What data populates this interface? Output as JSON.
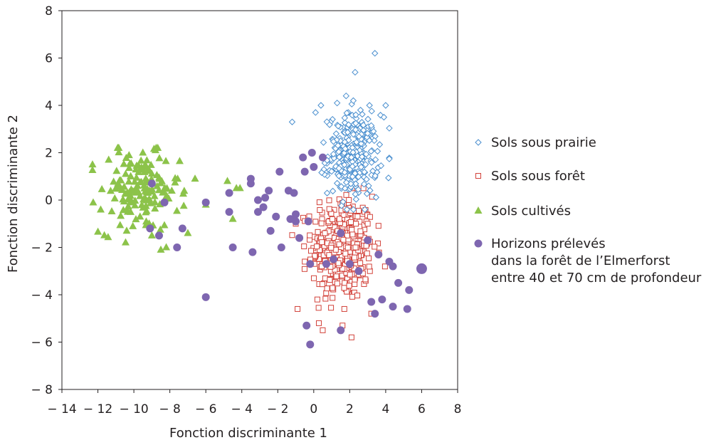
{
  "chart_data": {
    "type": "scatter",
    "title": "",
    "xlabel": "Fonction discriminante 1",
    "ylabel": "Fonction discriminante 2",
    "xlim": [
      -14,
      8
    ],
    "ylim": [
      -8,
      8
    ],
    "xticks": [
      -14,
      -12,
      -10,
      -8,
      -6,
      -4,
      -2,
      0,
      2,
      4,
      6,
      8
    ],
    "yticks": [
      -8,
      -6,
      -4,
      -2,
      0,
      2,
      4,
      6,
      8
    ],
    "xtick_labels": [
      "− 14",
      "− 12",
      "− 10",
      "− 8",
      "− 6",
      "− 4",
      "− 2",
      "0",
      "2",
      "4",
      "6",
      "8"
    ],
    "ytick_labels": [
      "− 8",
      "− 6",
      "− 4",
      "− 2",
      "0",
      "2",
      "4",
      "6",
      "8"
    ],
    "grid": false,
    "legend_position": "right",
    "legend": [
      {
        "lines": [
          "Sols sous prairie"
        ]
      },
      {
        "lines": [
          "Sols sous forêt"
        ]
      },
      {
        "lines": [
          "Sols cultivés"
        ]
      },
      {
        "lines": [
          "Horizons prélevés",
          "dans la forêt de l’Elmerforst",
          "entre 40 et 70 cm de profondeur"
        ]
      }
    ],
    "series": [
      {
        "name": "Sols sous prairie",
        "marker": "diamond-open",
        "color": "#4a8fcf",
        "cluster": {
          "n": 300,
          "cx": 2.2,
          "cy": 1.9,
          "sx": 0.7,
          "sy": 0.85,
          "xmin": -1.5,
          "xmax": 4.2,
          "ymin": -0.4,
          "ymax": 4.2
        },
        "points": [
          [
            3.4,
            6.2
          ],
          [
            2.3,
            5.4
          ],
          [
            1.8,
            4.4
          ],
          [
            2.2,
            4.2
          ],
          [
            3.1,
            4.0
          ],
          [
            0.4,
            4.0
          ],
          [
            4.0,
            4.0
          ],
          [
            0.1,
            3.7
          ],
          [
            3.9,
            3.5
          ],
          [
            -1.2,
            3.3
          ],
          [
            1.3,
            4.1
          ],
          [
            2.6,
            3.8
          ]
        ]
      },
      {
        "name": "Sols sous forêt",
        "marker": "square-open",
        "color": "#d2423a",
        "cluster": {
          "n": 360,
          "cx": 1.6,
          "cy": -2.0,
          "sx": 0.85,
          "sy": 1.1,
          "xmin": -1.2,
          "xmax": 4.2,
          "ymin": -5.2,
          "ymax": 0.5
        },
        "points": [
          [
            -0.9,
            -4.6
          ],
          [
            0.5,
            -5.5
          ],
          [
            1.6,
            -5.3
          ],
          [
            2.1,
            -5.8
          ],
          [
            3.2,
            -4.8
          ],
          [
            -0.5,
            -2.6
          ],
          [
            0.2,
            -4.2
          ],
          [
            1.7,
            -4.6
          ],
          [
            3.0,
            -1.0
          ],
          [
            -1.0,
            -1.0
          ]
        ]
      },
      {
        "name": "Sols cultivés",
        "marker": "triangle",
        "color": "#8cc34a",
        "cluster": {
          "n": 150,
          "cx": -9.7,
          "cy": 0.3,
          "sx": 1.1,
          "sy": 0.85,
          "xmin": -12.3,
          "xmax": -7.2,
          "ymin": -2.0,
          "ymax": 2.2
        },
        "points": [
          [
            -12.3,
            1.5
          ],
          [
            -10.9,
            2.2
          ],
          [
            -8.8,
            2.1
          ],
          [
            -9.5,
            2.0
          ],
          [
            -11.4,
            1.7
          ],
          [
            -8.5,
            -2.1
          ],
          [
            -7.0,
            -1.4
          ],
          [
            -6.6,
            0.9
          ],
          [
            -6.0,
            -0.2
          ],
          [
            -4.8,
            0.8
          ],
          [
            -4.5,
            -0.8
          ],
          [
            -4.3,
            0.5
          ],
          [
            -4.1,
            0.5
          ],
          [
            -10.4,
            -1.3
          ],
          [
            -9.0,
            -1.5
          ]
        ]
      },
      {
        "name": "Horizons prélevés dans la forêt de l’Elmerforst entre 40 et 70 cm de profondeur",
        "marker": "circle",
        "color": "#7e66b0",
        "points": [
          [
            -9.1,
            -1.2
          ],
          [
            -9.0,
            0.7
          ],
          [
            -8.6,
            -1.5
          ],
          [
            -8.3,
            -0.1
          ],
          [
            -7.6,
            -2.0
          ],
          [
            -7.3,
            -1.2
          ],
          [
            -6.0,
            -0.1
          ],
          [
            -6.0,
            -4.1
          ],
          [
            -4.7,
            0.3
          ],
          [
            -4.7,
            -0.5
          ],
          [
            -4.5,
            -2.0
          ],
          [
            -3.5,
            0.9
          ],
          [
            -3.5,
            0.7
          ],
          [
            -3.4,
            -2.2
          ],
          [
            -3.1,
            0.0
          ],
          [
            -3.1,
            -0.5
          ],
          [
            -2.8,
            -0.3
          ],
          [
            -2.7,
            0.1
          ],
          [
            -2.5,
            0.4
          ],
          [
            -2.4,
            -1.3
          ],
          [
            -2.1,
            -0.7
          ],
          [
            -1.9,
            1.2
          ],
          [
            -1.8,
            -2.0
          ],
          [
            -1.4,
            0.4
          ],
          [
            -1.3,
            -0.8
          ],
          [
            -1.1,
            0.3
          ],
          [
            -1.0,
            -0.6
          ],
          [
            -1.0,
            -0.9
          ],
          [
            -0.8,
            -1.6
          ],
          [
            -0.6,
            1.8
          ],
          [
            -0.5,
            1.2
          ],
          [
            -0.3,
            -0.9
          ],
          [
            -0.1,
            2.0
          ],
          [
            0.0,
            1.4
          ],
          [
            -0.2,
            -2.7
          ],
          [
            0.5,
            1.8
          ],
          [
            0.7,
            -2.7
          ],
          [
            -0.4,
            -5.3
          ],
          [
            -0.2,
            -6.1
          ],
          [
            1.1,
            -2.5
          ],
          [
            1.5,
            -1.4
          ],
          [
            1.5,
            -5.5
          ],
          [
            2.0,
            -2.7
          ],
          [
            2.5,
            -3.0
          ],
          [
            3.0,
            -1.7
          ],
          [
            3.2,
            -4.3
          ],
          [
            3.4,
            -4.8
          ],
          [
            3.6,
            -2.3
          ],
          [
            3.8,
            -4.2
          ],
          [
            4.2,
            -2.6
          ],
          [
            4.4,
            -2.8
          ],
          [
            4.4,
            -4.5
          ],
          [
            4.7,
            -3.5
          ],
          [
            5.2,
            -4.6
          ],
          [
            5.3,
            -3.8
          ],
          [
            6.0,
            -2.9
          ]
        ]
      }
    ]
  }
}
